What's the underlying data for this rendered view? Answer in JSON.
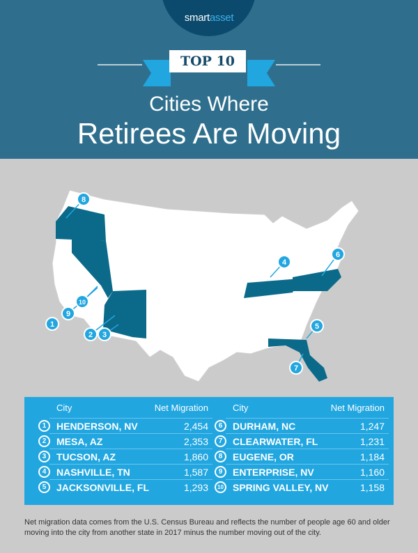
{
  "header": {
    "logo_brand": "smart",
    "logo_brand2": "asset",
    "badge": "TOP 10",
    "title_line1": "Cities Where",
    "title_line2": "Retirees Are Moving"
  },
  "colors": {
    "header": "#2f6f8d",
    "logo_circle": "#0c4a6d",
    "accent": "#21a6e0",
    "highlight_state": "#0b6a8a",
    "background": "#cbcbcb"
  },
  "map": {
    "highlighted_states": [
      "Oregon",
      "Nevada",
      "Arizona",
      "Tennessee",
      "North Carolina",
      "Florida"
    ],
    "markers": [
      "1",
      "2",
      "3",
      "4",
      "5",
      "6",
      "7",
      "8",
      "9",
      "10"
    ]
  },
  "table": {
    "col_city": "City",
    "col_value": "Net Migration",
    "rows": [
      {
        "rank": "1",
        "city": "HENDERSON, NV",
        "value": "2,454"
      },
      {
        "rank": "2",
        "city": "MESA, AZ",
        "value": "2,353"
      },
      {
        "rank": "3",
        "city": "TUCSON, AZ",
        "value": "1,860"
      },
      {
        "rank": "4",
        "city": "NASHVILLE, TN",
        "value": "1,587"
      },
      {
        "rank": "5",
        "city": "JACKSONVILLE, FL",
        "value": "1,293"
      },
      {
        "rank": "6",
        "city": "DURHAM, NC",
        "value": "1,247"
      },
      {
        "rank": "7",
        "city": "CLEARWATER, FL",
        "value": "1,231"
      },
      {
        "rank": "8",
        "city": "EUGENE, OR",
        "value": "1,184"
      },
      {
        "rank": "9",
        "city": "ENTERPRISE, NV",
        "value": "1,160"
      },
      {
        "rank": "10",
        "city": "SPRING VALLEY, NV",
        "value": "1,158"
      }
    ]
  },
  "note": "Net migration data comes from the U.S. Census Bureau and reflects the number of people age 60 and older moving into the city from another state in 2017 minus the number moving out of the city."
}
